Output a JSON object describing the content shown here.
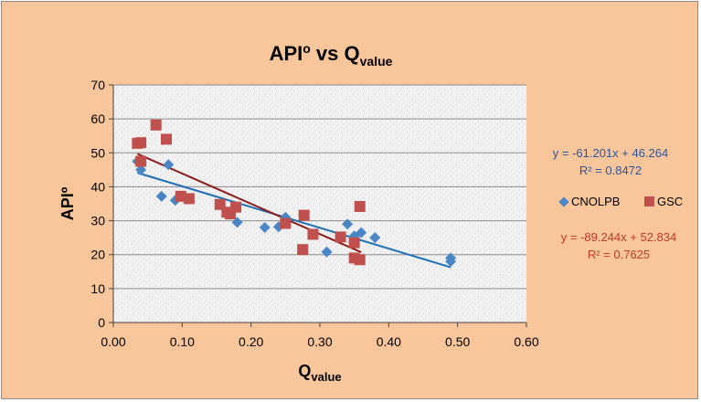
{
  "chart_data": {
    "type": "scatter",
    "title": {
      "main": "API",
      "main_sup": "o",
      "mid": " vs Q",
      "sub": "value"
    },
    "xlabel": {
      "main": "Q",
      "sub": "value"
    },
    "ylabel": "APIº",
    "xlim": [
      0,
      0.6
    ],
    "ylim": [
      0,
      70
    ],
    "x_ticks": [
      "0.00",
      "0.10",
      "0.20",
      "0.30",
      "0.40",
      "0.50",
      "0.60"
    ],
    "y_ticks": [
      "0",
      "10",
      "20",
      "30",
      "40",
      "50",
      "60",
      "70"
    ],
    "grid": "horizontal",
    "legend_position": "right",
    "series": [
      {
        "name": "CNOLPB",
        "marker": "diamond",
        "color": "#4a86c5",
        "trend_color": "#1f6fb5",
        "equation": "y = -61.201x + 46.264",
        "r2": "R² = 0.8472",
        "trend": {
          "slope": -61.201,
          "intercept": 46.264,
          "x_range": [
            0.035,
            0.49
          ]
        },
        "points": [
          [
            0.035,
            47.5
          ],
          [
            0.04,
            45.0
          ],
          [
            0.07,
            37.2
          ],
          [
            0.08,
            46.5
          ],
          [
            0.09,
            36.0
          ],
          [
            0.18,
            29.5
          ],
          [
            0.22,
            28.0
          ],
          [
            0.24,
            28.2
          ],
          [
            0.25,
            31.0
          ],
          [
            0.31,
            20.8
          ],
          [
            0.34,
            29.0
          ],
          [
            0.35,
            25.5
          ],
          [
            0.36,
            26.5
          ],
          [
            0.38,
            25.0
          ],
          [
            0.49,
            19.0
          ],
          [
            0.49,
            18.0
          ]
        ]
      },
      {
        "name": "GSC",
        "marker": "square",
        "color": "#c0504d",
        "trend_color": "#8b1a1a",
        "equation": "y = -89.244x + 52.834",
        "r2": "R² = 0.7625",
        "trend": {
          "slope": -89.244,
          "intercept": 52.834,
          "x_range": [
            0.035,
            0.36
          ]
        },
        "points": [
          [
            0.035,
            52.8
          ],
          [
            0.04,
            53.0
          ],
          [
            0.04,
            47.5
          ],
          [
            0.062,
            58.2
          ],
          [
            0.077,
            54.0
          ],
          [
            0.098,
            37.2
          ],
          [
            0.11,
            36.5
          ],
          [
            0.155,
            34.8
          ],
          [
            0.165,
            32.5
          ],
          [
            0.17,
            32.0
          ],
          [
            0.178,
            34.0
          ],
          [
            0.25,
            29.2
          ],
          [
            0.275,
            21.5
          ],
          [
            0.277,
            31.6
          ],
          [
            0.29,
            26.0
          ],
          [
            0.33,
            25.2
          ],
          [
            0.35,
            23.5
          ],
          [
            0.35,
            19.0
          ],
          [
            0.358,
            18.5
          ],
          [
            0.358,
            34.2
          ]
        ]
      }
    ]
  }
}
